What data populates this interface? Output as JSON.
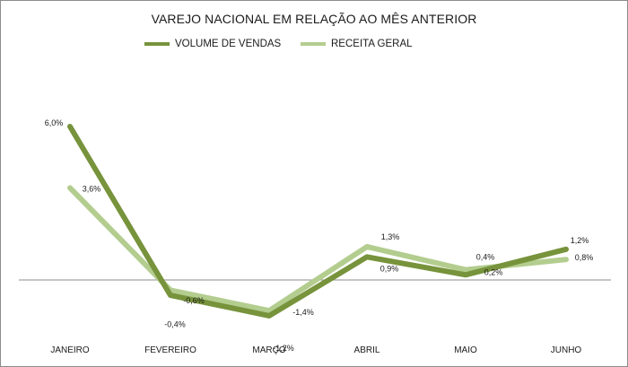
{
  "chart_data": {
    "type": "line",
    "title": "VAREJO NACIONAL EM RELAÇÃO AO MÊS ANTERIOR",
    "categories": [
      "JANEIRO",
      "FEVEREIRO",
      "MARÇO",
      "ABRIL",
      "MAIO",
      "JUNHO"
    ],
    "series": [
      {
        "name": "VOLUME DE VENDAS",
        "color": "#77933c",
        "values": [
          6.0,
          -0.6,
          -1.4,
          0.9,
          0.2,
          1.2
        ],
        "labels": [
          "6,0%",
          "-0,6%",
          "-1,4%",
          "0,9%",
          "0,2%",
          "1,2%"
        ]
      },
      {
        "name": "RECEITA GERAL",
        "color": "#b3cd8f",
        "values": [
          3.6,
          -0.4,
          -1.2,
          1.3,
          0.4,
          0.8
        ],
        "labels": [
          "3,6%",
          "-0,4%",
          "-1,2%",
          "1,3%",
          "0,4%",
          "0,8%"
        ]
      }
    ],
    "ylim": [
      -2.0,
      7.0
    ],
    "grid": false,
    "legend_position": "top"
  }
}
